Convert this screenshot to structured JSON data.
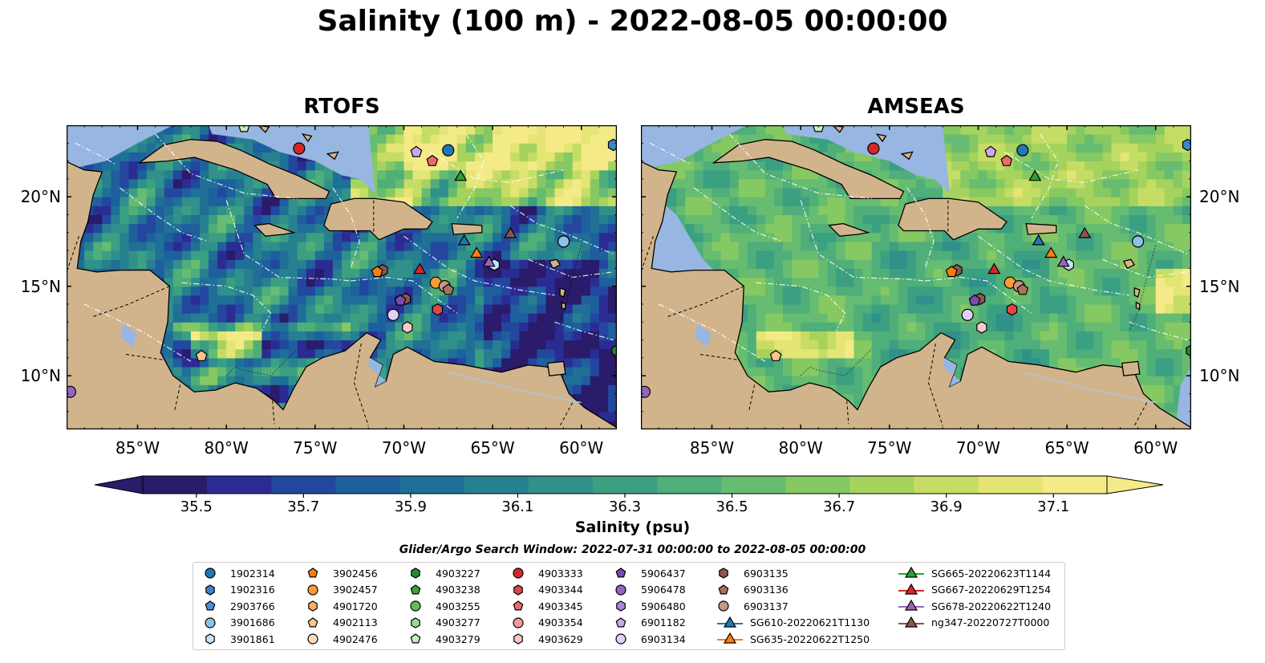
{
  "figure": {
    "title": "Salinity (100 m) - 2022-08-05 00:00:00",
    "search_window": "Glider/Argo Search Window: 2022-07-31 00:00:00 to 2022-08-05 00:00:00"
  },
  "maps": [
    {
      "title": "RTOFS",
      "model": "rtofs"
    },
    {
      "title": "AMSEAS",
      "model": "amseas"
    }
  ],
  "axes": {
    "lon_range": [
      -89,
      -58
    ],
    "lat_range": [
      7,
      24
    ],
    "lon_ticks": [
      {
        "v": -85,
        "label": "85°W"
      },
      {
        "v": -80,
        "label": "80°W"
      },
      {
        "v": -75,
        "label": "75°W"
      },
      {
        "v": -70,
        "label": "70°W"
      },
      {
        "v": -65,
        "label": "65°W"
      },
      {
        "v": -60,
        "label": "60°W"
      }
    ],
    "lat_ticks": [
      {
        "v": 10,
        "label": "10°N"
      },
      {
        "v": 15,
        "label": "15°N"
      },
      {
        "v": 20,
        "label": "20°N"
      }
    ]
  },
  "colorbar": {
    "label": "Salinity (psu)",
    "min": 35.4,
    "max": 37.2,
    "ticks": [
      "35.5",
      "35.7",
      "35.9",
      "36.1",
      "36.3",
      "36.5",
      "36.7",
      "36.9",
      "37.1"
    ],
    "tick_values": [
      35.5,
      35.7,
      35.9,
      36.1,
      36.3,
      36.5,
      36.7,
      36.9,
      37.1
    ],
    "colors": [
      "#2a1b6b",
      "#2b2c93",
      "#23479f",
      "#1e5f9e",
      "#1f6f96",
      "#27808f",
      "#30908a",
      "#3b9f82",
      "#4fae79",
      "#66bc70",
      "#86c862",
      "#a6d35e",
      "#c6dd65",
      "#e4e575",
      "#f4ea88"
    ]
  },
  "colors": {
    "land": "#d2b48c",
    "ocean_masked": "#97b6e1",
    "border": "#000000"
  },
  "legend": {
    "columns": [
      [
        {
          "label": "1902314",
          "marker": "circle",
          "color": "#1f77b4"
        },
        {
          "label": "1902316",
          "marker": "hexagon",
          "color": "#3a86c8"
        },
        {
          "label": "2903766",
          "marker": "pentagon",
          "color": "#4a90d9"
        },
        {
          "label": "3901686",
          "marker": "circle",
          "color": "#8cc2ea"
        },
        {
          "label": "3901861",
          "marker": "hexagon",
          "color": "#c6e2f7"
        }
      ],
      [
        {
          "label": "3902456",
          "marker": "pentagon",
          "color": "#f57f0e"
        },
        {
          "label": "3902457",
          "marker": "circle",
          "color": "#fb9a3b"
        },
        {
          "label": "4901720",
          "marker": "hexagon",
          "color": "#fdb06a"
        },
        {
          "label": "4902113",
          "marker": "pentagon",
          "color": "#fdc48f"
        },
        {
          "label": "4902476",
          "marker": "circle",
          "color": "#fddcb9"
        }
      ],
      [
        {
          "label": "4903227",
          "marker": "hexagon",
          "color": "#2a8b2a"
        },
        {
          "label": "4903238",
          "marker": "pentagon",
          "color": "#3aa63a"
        },
        {
          "label": "4903255",
          "marker": "circle",
          "color": "#5cc15c"
        },
        {
          "label": "4903277",
          "marker": "hexagon",
          "color": "#98db8f"
        },
        {
          "label": "4903279",
          "marker": "pentagon",
          "color": "#c8efbf"
        }
      ],
      [
        {
          "label": "4903333",
          "marker": "circle",
          "color": "#d62728"
        },
        {
          "label": "4903344",
          "marker": "hexagon",
          "color": "#e04545"
        },
        {
          "label": "4903345",
          "marker": "pentagon",
          "color": "#ec6a6a"
        },
        {
          "label": "4903354",
          "marker": "circle",
          "color": "#f59a96"
        },
        {
          "label": "4903629",
          "marker": "hexagon",
          "color": "#fbc9c5"
        }
      ],
      [
        {
          "label": "5906437",
          "marker": "pentagon",
          "color": "#7b4bb0"
        },
        {
          "label": "5906478",
          "marker": "circle",
          "color": "#9467bd"
        },
        {
          "label": "5906480",
          "marker": "hexagon",
          "color": "#ac86d6"
        },
        {
          "label": "6901182",
          "marker": "pentagon",
          "color": "#c8aaeb"
        },
        {
          "label": "6903134",
          "marker": "circle",
          "color": "#e2cff7"
        }
      ],
      [
        {
          "label": "6903135",
          "marker": "hexagon",
          "color": "#8c564b"
        },
        {
          "label": "6903136",
          "marker": "pentagon",
          "color": "#a8705f"
        },
        {
          "label": "6903137",
          "marker": "circle",
          "color": "#c4988a"
        },
        {
          "label": "SG610-20220621T1130",
          "marker": "triangle-line",
          "color": "#1f77b4"
        },
        {
          "label": "SG635-20220622T1250",
          "marker": "triangle-line",
          "color": "#ff7f0e"
        }
      ],
      [
        {
          "label": "SG665-20220623T1144",
          "marker": "triangle-line",
          "color": "#2ca02c"
        },
        {
          "label": "SG667-20220629T1254",
          "marker": "triangle-line",
          "color": "#d62728"
        },
        {
          "label": "SG678-20220622T1240",
          "marker": "triangle-line",
          "color": "#9467bd"
        },
        {
          "label": "ng347-20220727T0000",
          "marker": "triangle-line",
          "color": "#8c564b"
        }
      ]
    ]
  },
  "observations": [
    {
      "id": "4903333",
      "lon": -75.9,
      "lat": 22.7,
      "marker": "circle",
      "color": "#d62728"
    },
    {
      "id": "1902314",
      "lon": -67.5,
      "lat": 22.6,
      "marker": "circle",
      "color": "#1f77b4"
    },
    {
      "id": "6901182",
      "lon": -69.3,
      "lat": 22.5,
      "marker": "pentagon",
      "color": "#c8aaeb"
    },
    {
      "id": "4903345",
      "lon": -68.4,
      "lat": 22.0,
      "marker": "pentagon",
      "color": "#ec6a6a"
    },
    {
      "id": "SG665-20220623T1144",
      "lon": -66.8,
      "lat": 21.1,
      "marker": "triangle",
      "color": "#2ca02c"
    },
    {
      "id": "4903279",
      "lon": -79.0,
      "lat": 23.9,
      "marker": "pentagon",
      "color": "#c8efbf"
    },
    {
      "id": "1902316",
      "lon": -58.2,
      "lat": 22.9,
      "marker": "hexagon",
      "color": "#3a86c8"
    },
    {
      "id": "SG610-20220621T1130",
      "lon": -66.6,
      "lat": 17.5,
      "marker": "triangle",
      "color": "#1f77b4"
    },
    {
      "id": "ng347-20220727T0000",
      "lon": -64.0,
      "lat": 17.9,
      "marker": "triangle",
      "color": "#8c564b"
    },
    {
      "id": "3901686",
      "lon": -61.0,
      "lat": 17.5,
      "marker": "circle",
      "color": "#8cc2ea"
    },
    {
      "id": "SG635-20220622T1250",
      "lon": -65.9,
      "lat": 16.8,
      "marker": "triangle",
      "color": "#ff7f0e"
    },
    {
      "id": "3901861",
      "lon": -64.9,
      "lat": 16.2,
      "marker": "hexagon",
      "color": "#c6e2f7"
    },
    {
      "id": "SG678-20220622T1240",
      "lon": -65.2,
      "lat": 16.3,
      "marker": "triangle",
      "color": "#9467bd"
    },
    {
      "id": "SG667-20220629T1254",
      "lon": -69.1,
      "lat": 15.9,
      "marker": "triangle",
      "color": "#d62728"
    },
    {
      "id": "6903135",
      "lon": -71.2,
      "lat": 15.9,
      "marker": "hexagon",
      "color": "#8c564b"
    },
    {
      "id": "3902456",
      "lon": -71.5,
      "lat": 15.8,
      "marker": "pentagon",
      "color": "#f57f0e"
    },
    {
      "id": "3902457",
      "lon": -68.2,
      "lat": 15.2,
      "marker": "circle",
      "color": "#fb9a3b"
    },
    {
      "id": "6903137",
      "lon": -67.7,
      "lat": 15.0,
      "marker": "circle",
      "color": "#c4988a"
    },
    {
      "id": "6903136",
      "lon": -67.5,
      "lat": 14.8,
      "marker": "pentagon",
      "color": "#a8705f"
    },
    {
      "id": "6903135b",
      "lon": -69.9,
      "lat": 14.3,
      "marker": "hexagon",
      "color": "#8c564b"
    },
    {
      "id": "5906437",
      "lon": -70.2,
      "lat": 14.2,
      "marker": "pentagon",
      "color": "#7b4bb0"
    },
    {
      "id": "4903344",
      "lon": -68.1,
      "lat": 13.7,
      "marker": "hexagon",
      "color": "#e04545"
    },
    {
      "id": "6903134",
      "lon": -70.6,
      "lat": 13.4,
      "marker": "circle",
      "color": "#e2cff7"
    },
    {
      "id": "4903629",
      "lon": -69.8,
      "lat": 12.7,
      "marker": "hexagon",
      "color": "#fbc9c5"
    },
    {
      "id": "4902113",
      "lon": -81.4,
      "lat": 11.1,
      "marker": "pentagon",
      "color": "#fdc48f"
    },
    {
      "id": "5906478",
      "lon": -88.8,
      "lat": 9.1,
      "marker": "circle",
      "color": "#9467bd"
    },
    {
      "id": "4903227",
      "lon": -58.0,
      "lat": 11.4,
      "marker": "hexagon",
      "color": "#2a8b2a"
    }
  ]
}
